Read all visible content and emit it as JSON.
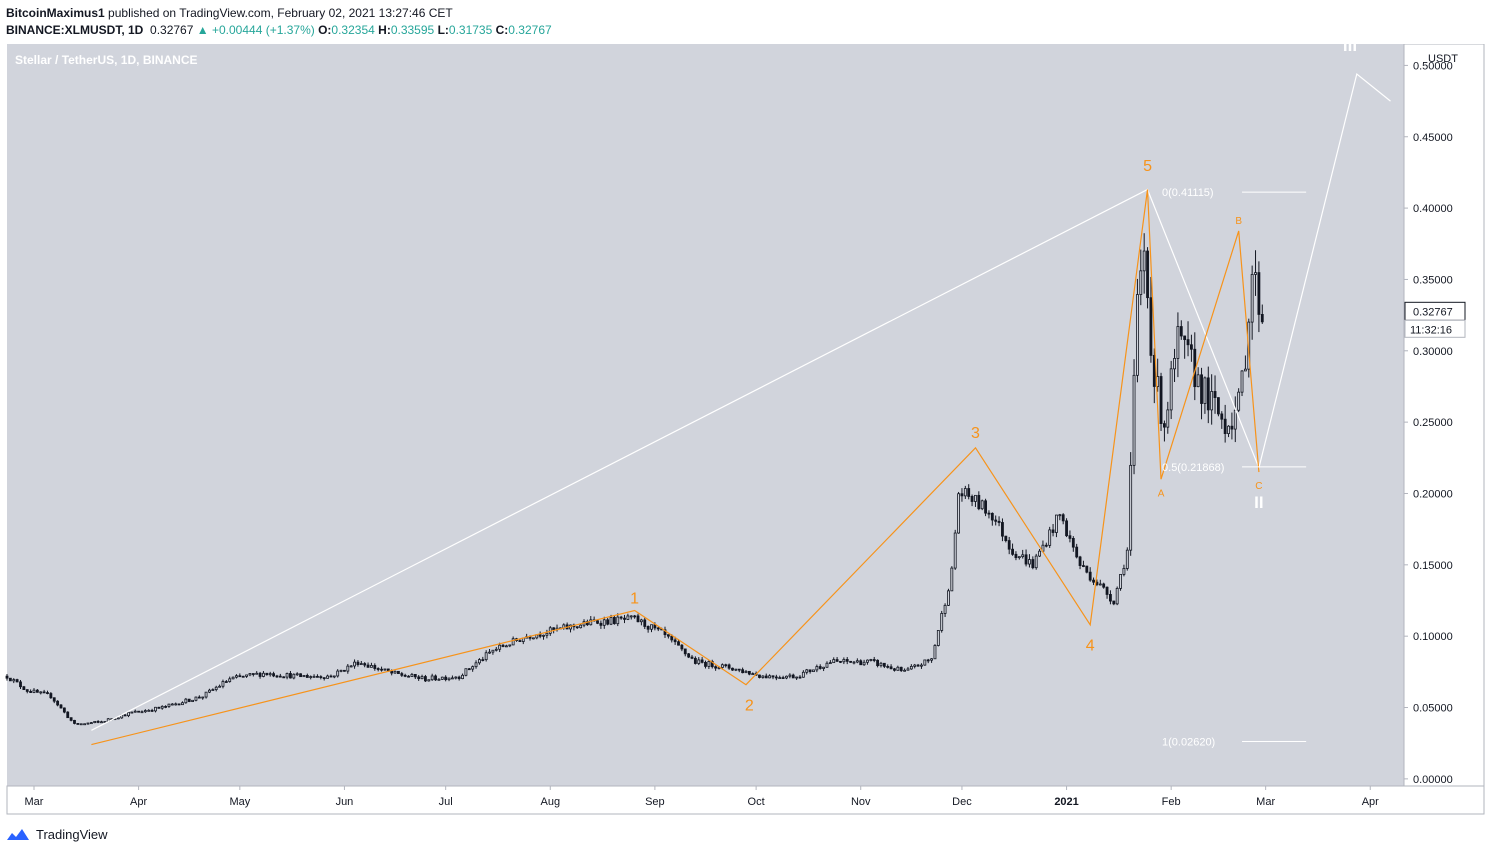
{
  "header": {
    "author": "BitcoinMaximus1",
    "published_text": "published on TradingView.com, February 02, 2021 13:27:46 CET",
    "symbol": "BINANCE:XLMUSDT, 1D",
    "last": "0.32767",
    "change": "+0.00444 (+1.37%)",
    "open_label": "O:",
    "open": "0.32354",
    "high_label": "H:",
    "high": "0.33595",
    "low_label": "L:",
    "low": "0.31735",
    "close_label": "C:",
    "close": "0.32767"
  },
  "footer": {
    "brand": "TradingView"
  },
  "colors": {
    "chart_bg": "#d1d4dc",
    "candle": "#131722",
    "orange": "#f7931a",
    "white": "#ffffff",
    "axis_text": "#131722"
  },
  "chart_data": {
    "type": "candlestick",
    "title": "Stellar / TetherUS, 1D, BINANCE",
    "currency": "USDT",
    "ylim": [
      -0.005,
      0.515
    ],
    "y_ticks": [
      "0.50000",
      "0.45000",
      "0.40000",
      "0.35000",
      "0.30000",
      "0.25000",
      "0.20000",
      "0.15000",
      "0.10000",
      "0.05000",
      "0.00000"
    ],
    "x_ticks": [
      "Mar",
      "Apr",
      "May",
      "Jun",
      "Jul",
      "Aug",
      "Sep",
      "Oct",
      "Nov",
      "Dec",
      "2021",
      "Feb",
      "Mar",
      "Apr"
    ],
    "x_tick_days": [
      0,
      31,
      61,
      92,
      122,
      153,
      184,
      214,
      245,
      275,
      306,
      337,
      365,
      396
    ],
    "x_range_days": [
      -8,
      406
    ],
    "last_price_label": "0.32767",
    "countdown_label": "11:32:16",
    "price_path": [
      [
        -8,
        0.072
      ],
      [
        -2,
        0.062
      ],
      [
        5,
        0.058
      ],
      [
        12,
        0.038
      ],
      [
        20,
        0.04
      ],
      [
        28,
        0.046
      ],
      [
        38,
        0.05
      ],
      [
        50,
        0.058
      ],
      [
        58,
        0.07
      ],
      [
        68,
        0.074
      ],
      [
        78,
        0.072
      ],
      [
        88,
        0.072
      ],
      [
        96,
        0.082
      ],
      [
        106,
        0.074
      ],
      [
        116,
        0.07
      ],
      [
        126,
        0.072
      ],
      [
        136,
        0.09
      ],
      [
        146,
        0.1
      ],
      [
        156,
        0.105
      ],
      [
        166,
        0.11
      ],
      [
        178,
        0.112
      ],
      [
        186,
        0.102
      ],
      [
        196,
        0.082
      ],
      [
        206,
        0.078
      ],
      [
        216,
        0.072
      ],
      [
        226,
        0.072
      ],
      [
        236,
        0.082
      ],
      [
        248,
        0.082
      ],
      [
        258,
        0.075
      ],
      [
        266,
        0.084
      ],
      [
        272,
        0.145
      ],
      [
        274,
        0.2
      ],
      [
        277,
        0.198
      ],
      [
        284,
        0.185
      ],
      [
        290,
        0.16
      ],
      [
        296,
        0.15
      ],
      [
        304,
        0.185
      ],
      [
        310,
        0.15
      ],
      [
        316,
        0.135
      ],
      [
        320,
        0.125
      ],
      [
        324,
        0.16
      ],
      [
        327,
        0.33
      ],
      [
        329,
        0.37
      ],
      [
        332,
        0.28
      ],
      [
        335,
        0.25
      ],
      [
        339,
        0.305
      ],
      [
        343,
        0.29
      ],
      [
        348,
        0.265
      ],
      [
        353,
        0.25
      ],
      [
        357,
        0.26
      ],
      [
        359,
        0.3
      ],
      [
        361,
        0.355
      ],
      [
        364,
        0.325
      ]
    ],
    "annotations": [
      {
        "label": "1",
        "day": 178,
        "price": 0.123,
        "color": "orange"
      },
      {
        "label": "2",
        "day": 212,
        "price": 0.048,
        "color": "orange"
      },
      {
        "label": "3",
        "day": 279,
        "price": 0.239,
        "color": "orange"
      },
      {
        "label": "4",
        "day": 313,
        "price": 0.09,
        "color": "orange"
      },
      {
        "label": "5",
        "day": 330,
        "price": 0.426,
        "color": "orange"
      },
      {
        "label": "A",
        "day": 334,
        "price": 0.198,
        "color": "orange"
      },
      {
        "label": "B",
        "day": 357,
        "price": 0.389,
        "color": "orange"
      },
      {
        "label": "C",
        "day": 363,
        "price": 0.203,
        "color": "orange"
      },
      {
        "label": "II",
        "day": 363,
        "price": 0.19,
        "color": "white"
      },
      {
        "label": "III",
        "day": 390,
        "price": 0.51,
        "color": "white"
      }
    ],
    "orange_wave": [
      [
        17,
        0.024
      ],
      [
        178,
        0.118
      ],
      [
        211,
        0.066
      ],
      [
        279,
        0.232
      ],
      [
        313,
        0.108
      ],
      [
        330,
        0.413
      ],
      [
        334,
        0.21
      ],
      [
        357,
        0.384
      ],
      [
        363,
        0.215
      ]
    ],
    "white_wave": [
      [
        17,
        0.034
      ],
      [
        330,
        0.413
      ],
      [
        363,
        0.218
      ],
      [
        392,
        0.494
      ],
      [
        402,
        0.475
      ]
    ],
    "fib_levels": [
      {
        "label": "0(0.41115)",
        "price": 0.41115,
        "day_start": 358,
        "day_end": 377
      },
      {
        "label": "0.5(0.21868)",
        "price": 0.21868,
        "day_start": 358,
        "day_end": 377
      },
      {
        "label": "1(0.02620)",
        "price": 0.0262,
        "day_start": 358,
        "day_end": 377
      }
    ]
  }
}
